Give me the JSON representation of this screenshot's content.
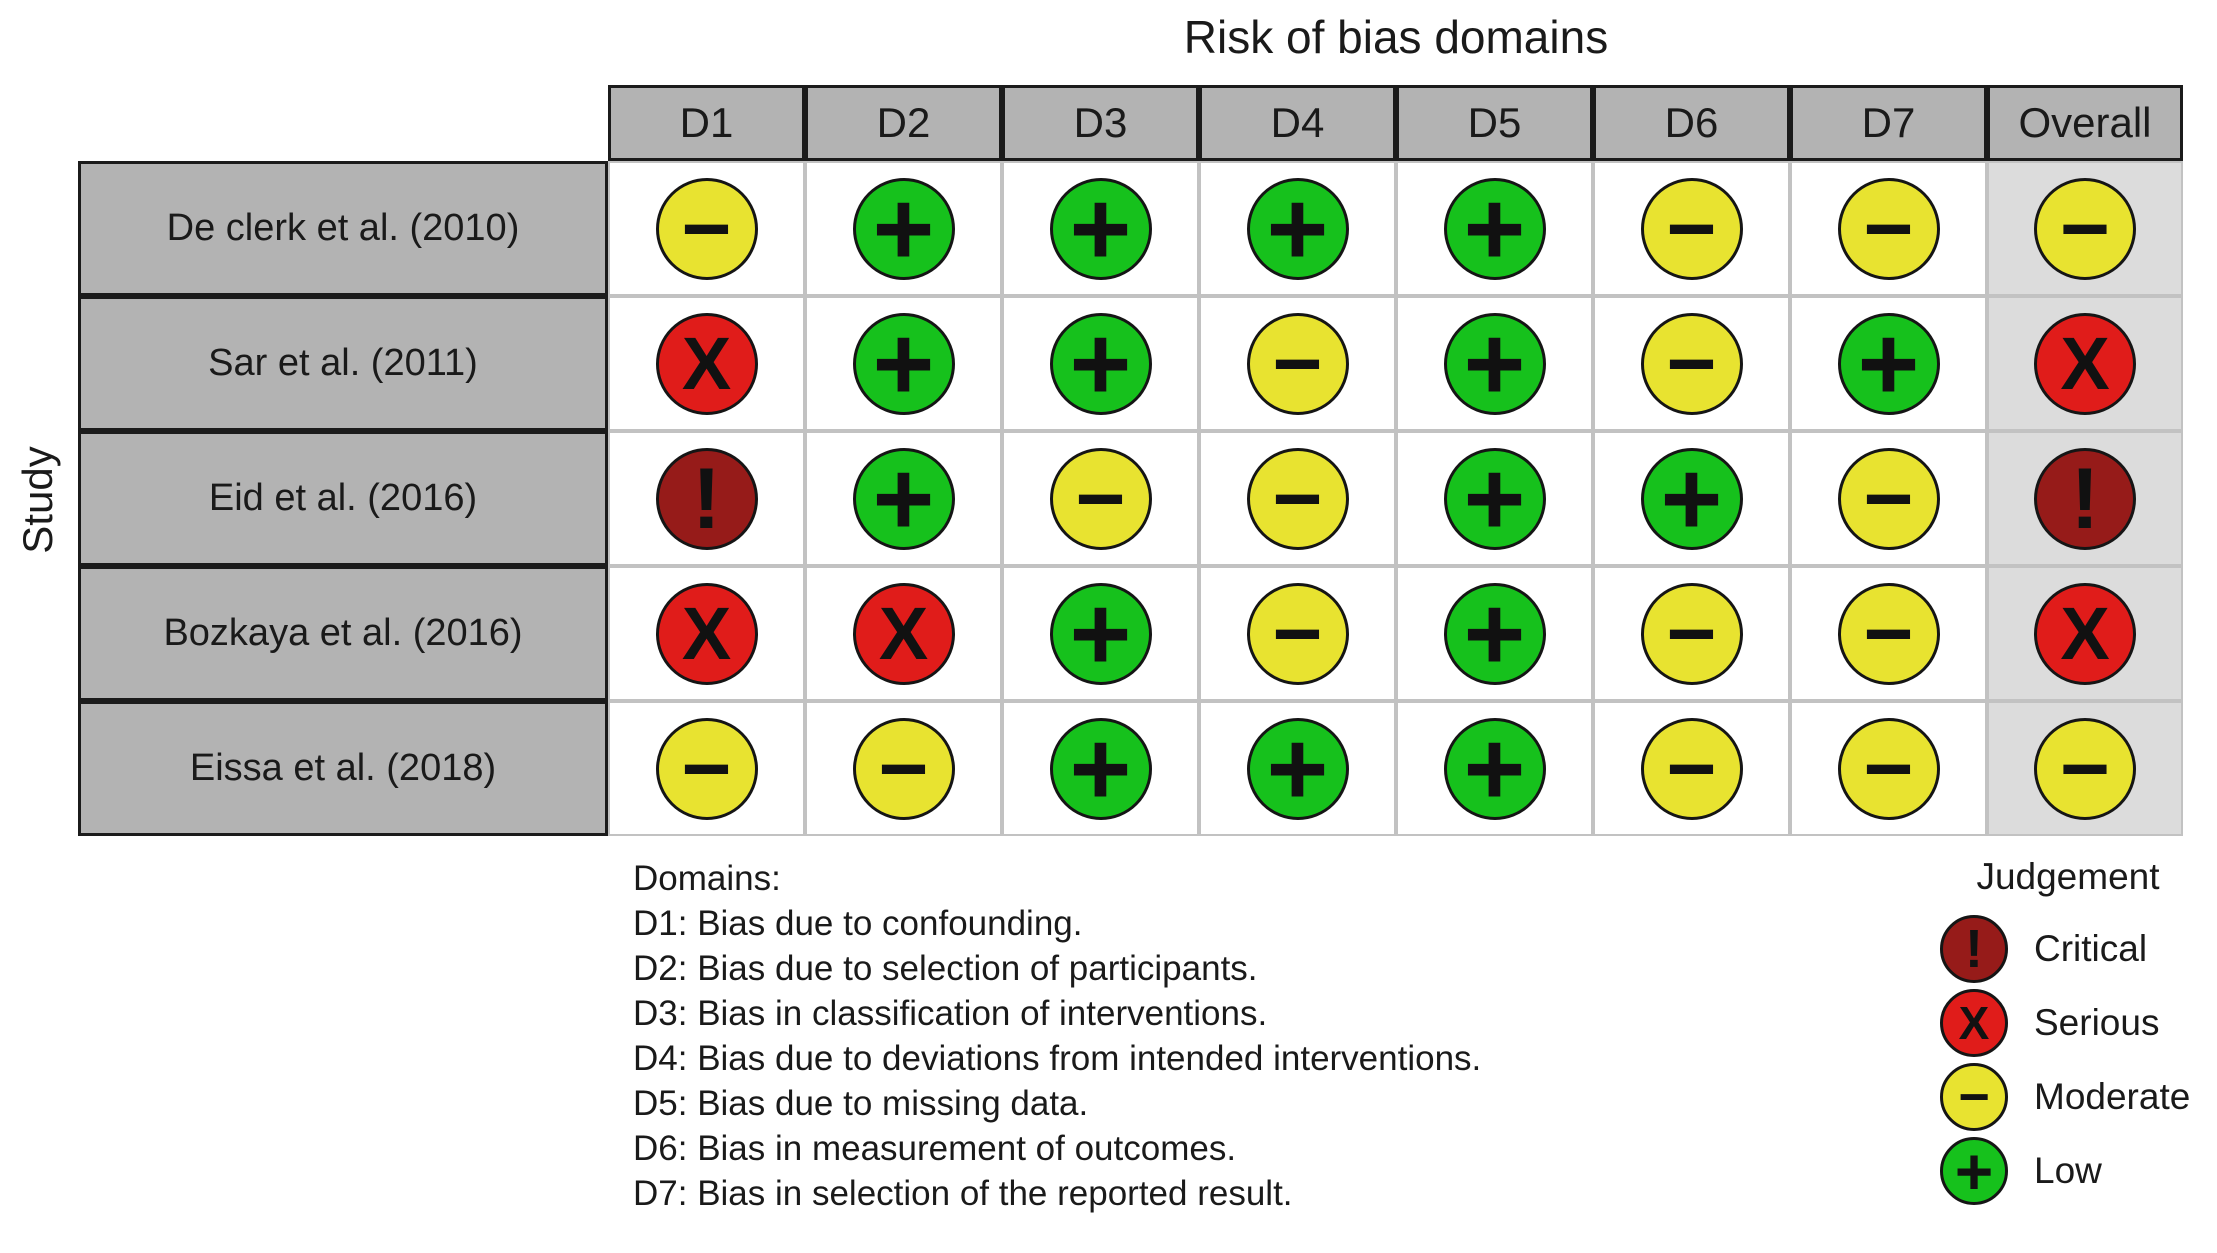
{
  "figure": {
    "title": "Risk of bias domains",
    "y_axis_label": "Study"
  },
  "table": {
    "columns": [
      "D1",
      "D2",
      "D3",
      "D4",
      "D5",
      "D6",
      "D7",
      "Overall"
    ],
    "rows": [
      {
        "study": "De clerk et al. (2010)",
        "judgements": [
          "moderate",
          "low",
          "low",
          "low",
          "low",
          "moderate",
          "moderate",
          "moderate"
        ]
      },
      {
        "study": "Sar et al. (2011)",
        "judgements": [
          "serious",
          "low",
          "low",
          "moderate",
          "low",
          "moderate",
          "low",
          "serious"
        ]
      },
      {
        "study": "Eid et al. (2016)",
        "judgements": [
          "critical",
          "low",
          "moderate",
          "moderate",
          "low",
          "low",
          "moderate",
          "critical"
        ]
      },
      {
        "study": "Bozkaya et al. (2016)",
        "judgements": [
          "serious",
          "serious",
          "low",
          "moderate",
          "low",
          "moderate",
          "moderate",
          "serious"
        ]
      },
      {
        "study": "Eissa et al. (2018)",
        "judgements": [
          "moderate",
          "moderate",
          "low",
          "low",
          "low",
          "moderate",
          "moderate",
          "moderate"
        ]
      }
    ]
  },
  "judgement_styles": {
    "critical": {
      "label": "Critical",
      "symbol": "!",
      "color": "#961b19"
    },
    "serious": {
      "label": "Serious",
      "symbol": "X",
      "color": "#e01c1a"
    },
    "moderate": {
      "label": "Moderate",
      "symbol": "−",
      "color": "#e8e330"
    },
    "low": {
      "label": "Low",
      "symbol": "+",
      "color": "#16c11c"
    }
  },
  "domains_note": {
    "heading": "Domains:",
    "lines": [
      "D1: Bias due to confounding.",
      "D2: Bias due to selection of participants.",
      "D3: Bias in classification of interventions.",
      "D4: Bias due to deviations from intended interventions.",
      "D5: Bias due to missing data.",
      "D6: Bias in measurement of outcomes.",
      "D7: Bias in selection of the reported result."
    ]
  },
  "legend": {
    "title": "Judgement",
    "items": [
      {
        "key": "critical",
        "label": "Critical"
      },
      {
        "key": "serious",
        "label": "Serious"
      },
      {
        "key": "moderate",
        "label": "Moderate"
      },
      {
        "key": "low",
        "label": "Low"
      }
    ]
  },
  "colors": {
    "header_fill": "#b3b3b3",
    "overall_column_fill": "#dcdcdc",
    "cell_fill": "#ffffff",
    "grid_line": "#c2c2c2",
    "table_border": "#1b1b1b"
  },
  "chart_data": {
    "type": "heatmap",
    "title": "Risk of bias domains",
    "x_categories": [
      "D1",
      "D2",
      "D3",
      "D4",
      "D5",
      "D6",
      "D7",
      "Overall"
    ],
    "y_categories": [
      "De clerk et al. (2010)",
      "Sar et al. (2011)",
      "Eid et al. (2016)",
      "Bozkaya et al. (2016)",
      "Eissa et al. (2018)"
    ],
    "values": [
      [
        "moderate",
        "low",
        "low",
        "low",
        "low",
        "moderate",
        "moderate",
        "moderate"
      ],
      [
        "serious",
        "low",
        "low",
        "moderate",
        "low",
        "moderate",
        "low",
        "serious"
      ],
      [
        "critical",
        "low",
        "moderate",
        "moderate",
        "low",
        "low",
        "moderate",
        "critical"
      ],
      [
        "serious",
        "serious",
        "low",
        "moderate",
        "low",
        "moderate",
        "moderate",
        "serious"
      ],
      [
        "moderate",
        "moderate",
        "low",
        "low",
        "low",
        "moderate",
        "moderate",
        "moderate"
      ]
    ],
    "value_scale": [
      {
        "value": "critical",
        "label": "Critical",
        "symbol": "!",
        "color": "#961b19"
      },
      {
        "value": "serious",
        "label": "Serious",
        "symbol": "X",
        "color": "#e01c1a"
      },
      {
        "value": "moderate",
        "label": "Moderate",
        "symbol": "−",
        "color": "#e8e330"
      },
      {
        "value": "low",
        "label": "Low",
        "symbol": "+",
        "color": "#16c11c"
      }
    ],
    "xlabel": "Risk of bias domains",
    "ylabel": "Study",
    "legend_position": "bottom-right",
    "grid": true
  }
}
